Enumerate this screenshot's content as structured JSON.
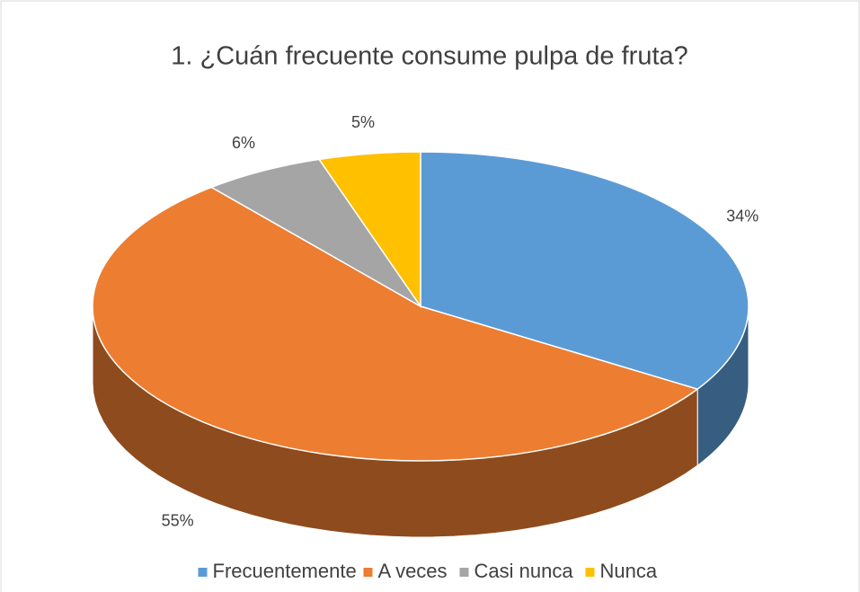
{
  "chart_data": {
    "type": "pie",
    "title": "1. ¿Cuán frecuente consume pulpa de fruta?",
    "categories": [
      "Frecuentemente",
      "A veces",
      "Casi nunca",
      "Nunca"
    ],
    "values": [
      34,
      55,
      6,
      5
    ],
    "value_labels": [
      "34%",
      "55%",
      "6%",
      "5%"
    ],
    "colors": [
      "#5b9bd5",
      "#ed7d31",
      "#a5a5a5",
      "#ffc000"
    ],
    "legend": "bottom"
  }
}
